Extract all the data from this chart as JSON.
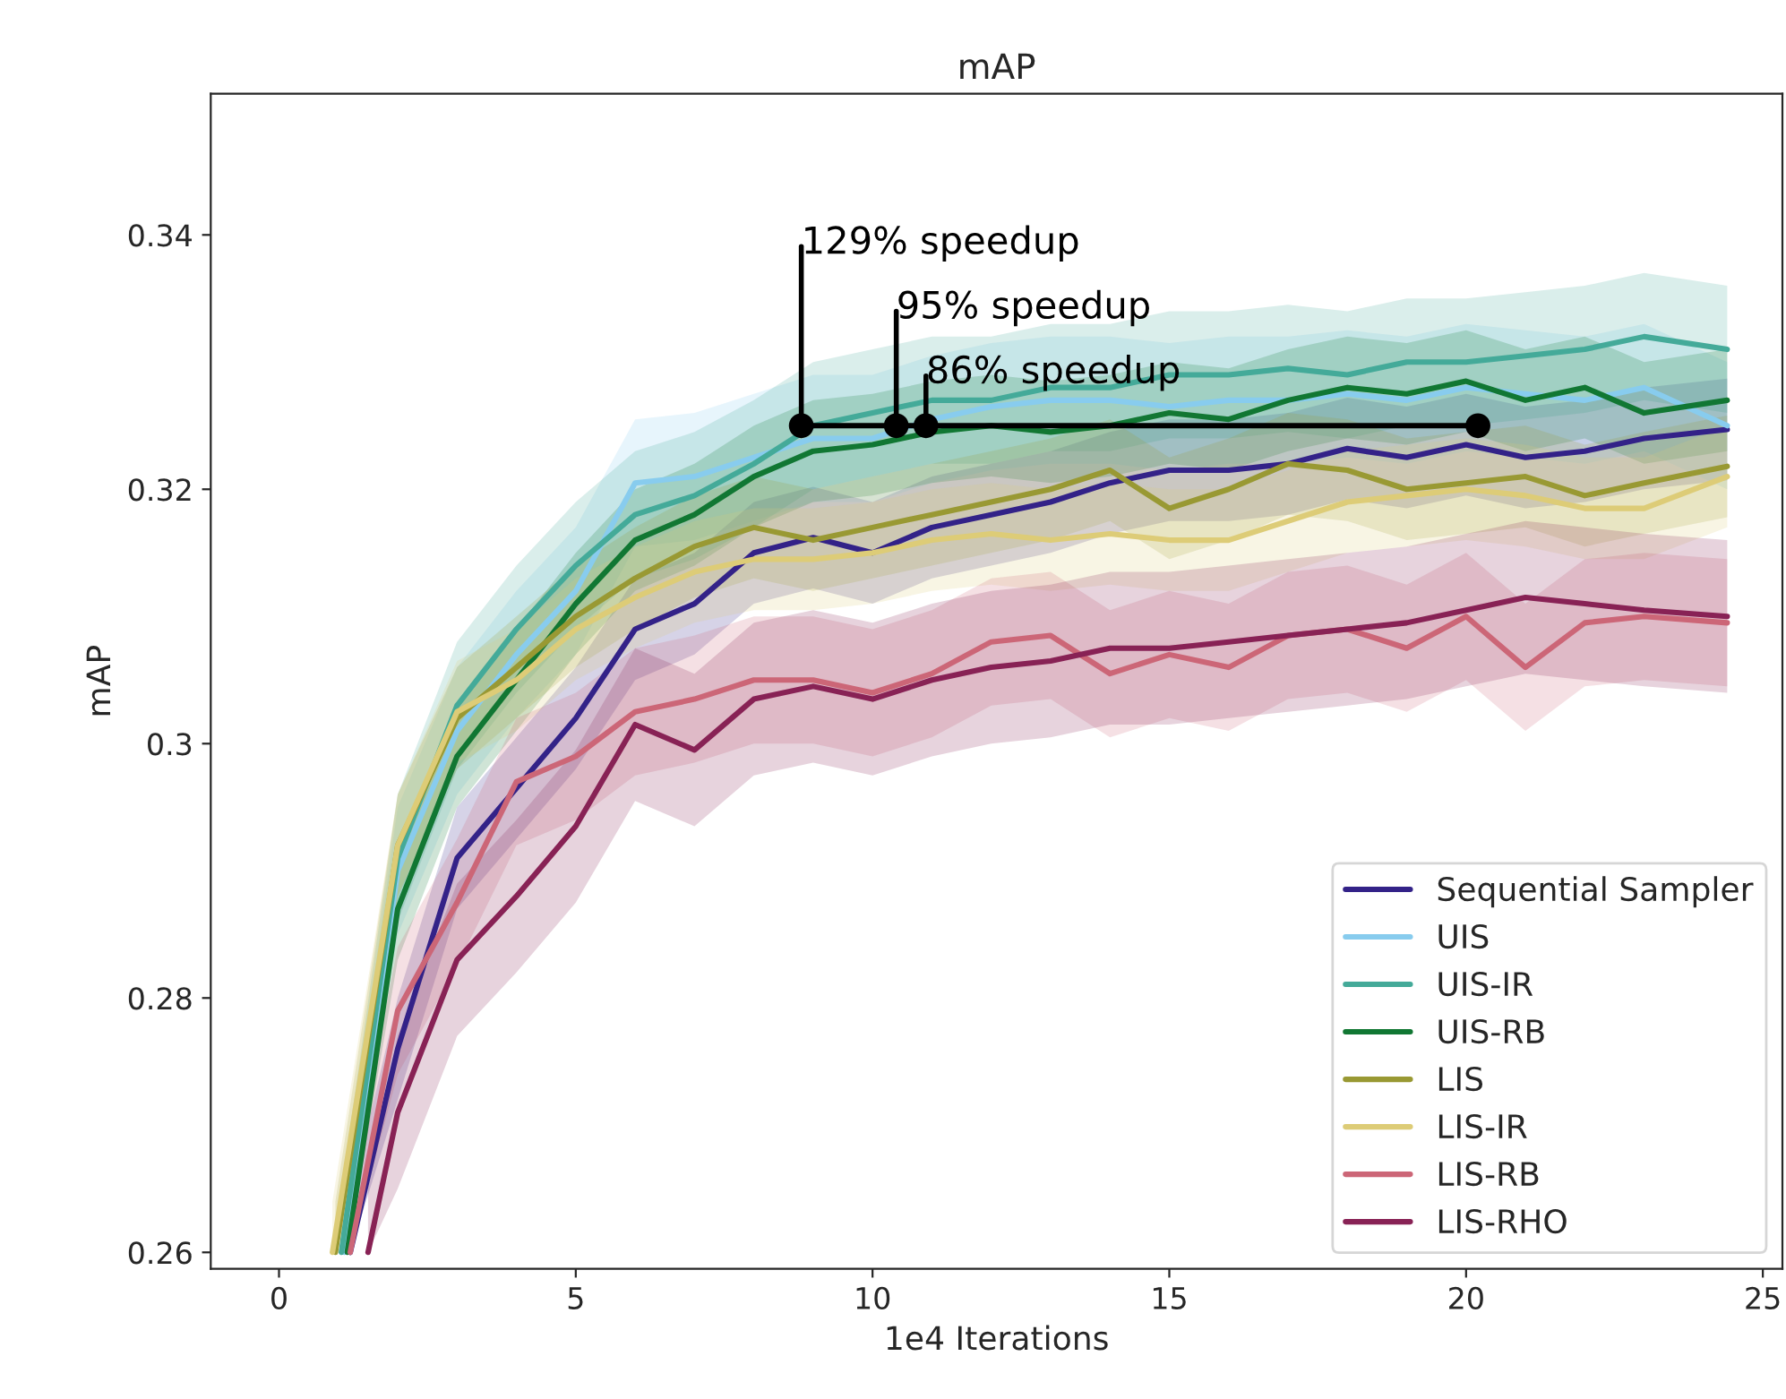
{
  "chart_data": {
    "type": "line",
    "title": "mAP",
    "xlabel": "1e4 Iterations",
    "ylabel": "mAP",
    "xlim": [
      -1.15,
      25.33
    ],
    "ylim": [
      0.2587,
      0.3511
    ],
    "xticks": [
      0,
      5,
      10,
      15,
      20,
      25
    ],
    "yticks": [
      0.26,
      0.28,
      0.3,
      0.32,
      0.34
    ],
    "grid": false,
    "legend": "bottom right",
    "series": [
      {
        "name": "Sequential Sampler",
        "color": "#332288",
        "x": [
          1.2,
          2,
          3,
          4,
          5,
          6,
          7,
          8,
          9,
          10,
          11,
          12,
          13,
          14,
          15,
          16,
          17,
          18,
          19,
          20,
          21,
          22,
          23,
          24.4
        ],
        "values": [
          0.26,
          0.276,
          0.291,
          0.2965,
          0.302,
          0.309,
          0.311,
          0.315,
          0.3162,
          0.315,
          0.317,
          0.318,
          0.319,
          0.3205,
          0.3215,
          0.3215,
          0.322,
          0.3232,
          0.3225,
          0.3235,
          0.3225,
          0.323,
          0.324,
          0.3247
        ],
        "lower": [
          0.26,
          0.272,
          0.287,
          0.2925,
          0.298,
          0.305,
          0.307,
          0.311,
          0.3122,
          0.311,
          0.313,
          0.314,
          0.315,
          0.3165,
          0.3175,
          0.3175,
          0.318,
          0.3192,
          0.3185,
          0.3195,
          0.3185,
          0.319,
          0.32,
          0.3207
        ],
        "upper": [
          0.264,
          0.28,
          0.295,
          0.3005,
          0.306,
          0.313,
          0.315,
          0.319,
          0.3202,
          0.319,
          0.321,
          0.322,
          0.323,
          0.3245,
          0.3255,
          0.3255,
          0.326,
          0.3272,
          0.3265,
          0.3275,
          0.3265,
          0.327,
          0.328,
          0.3287
        ]
      },
      {
        "name": "UIS",
        "color": "#88ccee",
        "x": [
          1.1,
          2,
          3,
          4,
          5,
          6,
          7,
          8,
          9,
          10,
          11,
          12,
          13,
          14,
          15,
          16,
          17,
          18,
          19,
          20,
          21,
          22,
          23,
          24.4
        ],
        "values": [
          0.26,
          0.29,
          0.301,
          0.307,
          0.312,
          0.3205,
          0.321,
          0.3225,
          0.324,
          0.324,
          0.3255,
          0.3265,
          0.327,
          0.327,
          0.3265,
          0.327,
          0.327,
          0.3275,
          0.327,
          0.328,
          0.3275,
          0.327,
          0.328,
          0.325
        ],
        "lower": [
          0.26,
          0.285,
          0.296,
          0.302,
          0.307,
          0.3155,
          0.316,
          0.3175,
          0.319,
          0.319,
          0.3205,
          0.3215,
          0.322,
          0.322,
          0.3215,
          0.322,
          0.322,
          0.3225,
          0.322,
          0.323,
          0.3225,
          0.322,
          0.323,
          0.32
        ],
        "upper": [
          0.265,
          0.295,
          0.306,
          0.312,
          0.317,
          0.3255,
          0.326,
          0.3275,
          0.329,
          0.329,
          0.3305,
          0.3315,
          0.332,
          0.332,
          0.3315,
          0.332,
          0.332,
          0.3325,
          0.332,
          0.333,
          0.3325,
          0.332,
          0.333,
          0.33
        ]
      },
      {
        "name": "UIS-IR",
        "color": "#44aa99",
        "x": [
          1.05,
          2,
          3,
          4,
          5,
          6,
          7,
          8,
          9,
          10,
          11,
          12,
          13,
          14,
          15,
          16,
          17,
          18,
          19,
          20,
          21,
          22,
          23,
          24.4
        ],
        "values": [
          0.26,
          0.291,
          0.303,
          0.309,
          0.314,
          0.318,
          0.3195,
          0.322,
          0.325,
          0.326,
          0.327,
          0.327,
          0.328,
          0.328,
          0.329,
          0.329,
          0.3295,
          0.329,
          0.33,
          0.33,
          0.3305,
          0.331,
          0.332,
          0.331
        ],
        "lower": [
          0.26,
          0.286,
          0.298,
          0.304,
          0.309,
          0.313,
          0.3145,
          0.317,
          0.32,
          0.321,
          0.322,
          0.322,
          0.323,
          0.323,
          0.324,
          0.324,
          0.3245,
          0.324,
          0.325,
          0.325,
          0.3255,
          0.326,
          0.327,
          0.326
        ],
        "upper": [
          0.265,
          0.296,
          0.308,
          0.314,
          0.319,
          0.323,
          0.3245,
          0.327,
          0.33,
          0.331,
          0.332,
          0.332,
          0.333,
          0.333,
          0.334,
          0.334,
          0.3345,
          0.334,
          0.335,
          0.335,
          0.3355,
          0.336,
          0.337,
          0.336
        ]
      },
      {
        "name": "UIS-RB",
        "color": "#117733",
        "x": [
          1.15,
          2,
          3,
          4,
          5,
          6,
          7,
          8,
          9,
          10,
          11,
          12,
          13,
          14,
          15,
          16,
          17,
          18,
          19,
          20,
          21,
          22,
          23,
          24.4
        ],
        "values": [
          0.26,
          0.287,
          0.299,
          0.305,
          0.311,
          0.316,
          0.318,
          0.321,
          0.323,
          0.3235,
          0.3245,
          0.325,
          0.3245,
          0.325,
          0.326,
          0.3255,
          0.327,
          0.328,
          0.3275,
          0.3285,
          0.327,
          0.328,
          0.326,
          0.327
        ],
        "lower": [
          0.26,
          0.283,
          0.295,
          0.301,
          0.307,
          0.312,
          0.314,
          0.317,
          0.319,
          0.3195,
          0.3205,
          0.321,
          0.3205,
          0.321,
          0.322,
          0.3215,
          0.323,
          0.324,
          0.3235,
          0.3245,
          0.323,
          0.324,
          0.322,
          0.323
        ],
        "upper": [
          0.264,
          0.291,
          0.303,
          0.309,
          0.315,
          0.32,
          0.322,
          0.325,
          0.327,
          0.3275,
          0.3285,
          0.329,
          0.3285,
          0.329,
          0.33,
          0.3295,
          0.331,
          0.332,
          0.3315,
          0.3325,
          0.331,
          0.332,
          0.33,
          0.331
        ]
      },
      {
        "name": "LIS",
        "color": "#999933",
        "x": [
          0.95,
          2,
          3,
          4,
          5,
          6,
          7,
          8,
          9,
          10,
          11,
          12,
          13,
          14,
          15,
          16,
          17,
          18,
          19,
          20,
          21,
          22,
          23,
          24.4
        ],
        "values": [
          0.26,
          0.292,
          0.302,
          0.306,
          0.31,
          0.313,
          0.3155,
          0.317,
          0.316,
          0.317,
          0.318,
          0.319,
          0.32,
          0.3215,
          0.3185,
          0.32,
          0.322,
          0.3215,
          0.32,
          0.3205,
          0.321,
          0.3195,
          0.3205,
          0.3218
        ],
        "lower": [
          0.26,
          0.288,
          0.298,
          0.302,
          0.306,
          0.309,
          0.3115,
          0.313,
          0.312,
          0.313,
          0.314,
          0.315,
          0.316,
          0.3175,
          0.3145,
          0.316,
          0.318,
          0.3175,
          0.316,
          0.3165,
          0.317,
          0.3155,
          0.3165,
          0.3178
        ],
        "upper": [
          0.264,
          0.296,
          0.306,
          0.31,
          0.314,
          0.317,
          0.3195,
          0.321,
          0.32,
          0.321,
          0.322,
          0.323,
          0.324,
          0.3255,
          0.3225,
          0.324,
          0.326,
          0.3255,
          0.324,
          0.3245,
          0.325,
          0.3235,
          0.3245,
          0.3258
        ]
      },
      {
        "name": "LIS-IR",
        "color": "#ddcc77",
        "x": [
          0.9,
          2,
          3,
          4,
          5,
          6,
          7,
          8,
          9,
          10,
          11,
          12,
          13,
          14,
          15,
          16,
          17,
          18,
          19,
          20,
          21,
          22,
          23,
          24.4
        ],
        "values": [
          0.26,
          0.292,
          0.3025,
          0.305,
          0.309,
          0.3115,
          0.3135,
          0.3145,
          0.3145,
          0.315,
          0.316,
          0.3165,
          0.316,
          0.3165,
          0.316,
          0.316,
          0.3175,
          0.319,
          0.3195,
          0.32,
          0.3195,
          0.3185,
          0.3185,
          0.321
        ],
        "lower": [
          0.26,
          0.288,
          0.2985,
          0.301,
          0.305,
          0.3075,
          0.3095,
          0.3105,
          0.3105,
          0.311,
          0.312,
          0.3125,
          0.312,
          0.3125,
          0.312,
          0.312,
          0.3135,
          0.315,
          0.3155,
          0.316,
          0.3155,
          0.3145,
          0.3145,
          0.317
        ],
        "upper": [
          0.264,
          0.296,
          0.3065,
          0.309,
          0.313,
          0.3155,
          0.3175,
          0.3185,
          0.3185,
          0.319,
          0.32,
          0.3205,
          0.32,
          0.3205,
          0.32,
          0.32,
          0.3215,
          0.323,
          0.3235,
          0.324,
          0.3235,
          0.3225,
          0.3225,
          0.325
        ]
      },
      {
        "name": "LIS-RB",
        "color": "#cc6677",
        "x": [
          1.2,
          2,
          3,
          4,
          5,
          6,
          7,
          8,
          9,
          10,
          11,
          12,
          13,
          14,
          15,
          16,
          17,
          18,
          19,
          20,
          21,
          22,
          23,
          24.4
        ],
        "values": [
          0.26,
          0.279,
          0.2875,
          0.297,
          0.299,
          0.3025,
          0.3035,
          0.305,
          0.305,
          0.304,
          0.3055,
          0.308,
          0.3085,
          0.3055,
          0.307,
          0.306,
          0.3085,
          0.309,
          0.3075,
          0.31,
          0.306,
          0.3095,
          0.31,
          0.3095
        ],
        "lower": [
          0.26,
          0.274,
          0.2825,
          0.292,
          0.294,
          0.2975,
          0.2985,
          0.3,
          0.3,
          0.299,
          0.3005,
          0.303,
          0.3035,
          0.3005,
          0.302,
          0.301,
          0.3035,
          0.304,
          0.3025,
          0.305,
          0.301,
          0.3045,
          0.305,
          0.3045
        ],
        "upper": [
          0.265,
          0.284,
          0.2925,
          0.302,
          0.304,
          0.3075,
          0.3085,
          0.31,
          0.31,
          0.309,
          0.3105,
          0.313,
          0.3135,
          0.3105,
          0.312,
          0.311,
          0.3135,
          0.314,
          0.3125,
          0.315,
          0.311,
          0.3145,
          0.315,
          0.3145
        ]
      },
      {
        "name": "LIS-RHO",
        "color": "#882255",
        "x": [
          1.5,
          2,
          3,
          4,
          5,
          6,
          7,
          8,
          9,
          10,
          11,
          12,
          13,
          14,
          15,
          16,
          17,
          18,
          19,
          20,
          21,
          22,
          23,
          24.4
        ],
        "values": [
          0.26,
          0.271,
          0.283,
          0.288,
          0.2935,
          0.3015,
          0.2995,
          0.3035,
          0.3045,
          0.3035,
          0.305,
          0.306,
          0.3065,
          0.3075,
          0.3075,
          0.308,
          0.3085,
          0.309,
          0.3095,
          0.3105,
          0.3115,
          0.311,
          0.3105,
          0.31
        ],
        "lower": [
          0.26,
          0.265,
          0.277,
          0.282,
          0.2875,
          0.2955,
          0.2935,
          0.2975,
          0.2985,
          0.2975,
          0.299,
          0.3,
          0.3005,
          0.3015,
          0.3015,
          0.302,
          0.3025,
          0.303,
          0.3035,
          0.3045,
          0.3055,
          0.305,
          0.3045,
          0.304
        ],
        "upper": [
          0.266,
          0.277,
          0.289,
          0.294,
          0.2995,
          0.3075,
          0.3055,
          0.3095,
          0.3105,
          0.3095,
          0.311,
          0.312,
          0.3125,
          0.3135,
          0.3135,
          0.314,
          0.3145,
          0.315,
          0.3155,
          0.3165,
          0.3175,
          0.317,
          0.3165,
          0.316
        ]
      },
      {
        "color": "#000000",
        "marker": "circle",
        "x": [
          8.8,
          10.4,
          10.9,
          20.2
        ],
        "values": [
          0.325,
          0.325,
          0.325,
          0.325
        ]
      }
    ],
    "annotations": [
      {
        "text": "129% speedup",
        "x": 8.8,
        "y": 0.325
      },
      {
        "text": "95% speedup",
        "x": 10.4,
        "y": 0.325
      },
      {
        "text": "86% speedup",
        "x": 10.9,
        "y": 0.325
      }
    ]
  }
}
